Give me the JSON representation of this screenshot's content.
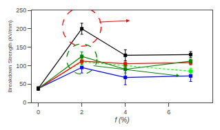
{
  "chart_data": {
    "type": "line",
    "xlabel": "f (%)",
    "ylabel": "Breakdown Strength (kV/mm)",
    "x": [
      0,
      2,
      4,
      7
    ],
    "xlim": [
      -0.3,
      8
    ],
    "xticks": [
      0,
      2,
      4,
      6
    ],
    "ylim": [
      0,
      250
    ],
    "yticks": [
      0,
      50,
      100,
      150,
      200,
      250
    ],
    "grid": false,
    "marker": "square",
    "series": [
      {
        "color": "blue",
        "line_style": "solid",
        "values": [
          38,
          95,
          68,
          72
        ],
        "errors": [
          4,
          15,
          20,
          15
        ]
      },
      {
        "color": "lime",
        "line_style": "dotted",
        "values": [
          38,
          110,
          100,
          85
        ],
        "errors": [
          4,
          10,
          8,
          8
        ]
      },
      {
        "color": "red",
        "line_style": "solid",
        "values": [
          38,
          112,
          105,
          108
        ],
        "errors": [
          4,
          8,
          8,
          6
        ]
      },
      {
        "color": "green",
        "line_style": "solid",
        "values": [
          38,
          125,
          90,
          112
        ],
        "errors": [
          4,
          12,
          10,
          6
        ]
      },
      {
        "color": "black",
        "line_style": "solid",
        "values": [
          38,
          200,
          128,
          130
        ],
        "errors": [
          5,
          15,
          15,
          8
        ]
      }
    ],
    "annotations": [
      {
        "type": "ellipse",
        "center": [
          2,
          205
        ],
        "color": "red",
        "line_style": "dashed"
      },
      {
        "type": "ellipse",
        "center": [
          2,
          118
        ],
        "color": "green",
        "line_style": "dashed"
      },
      {
        "type": "arrow",
        "from": [
          2,
          218
        ],
        "to": [
          4.2,
          222
        ],
        "color": "red"
      },
      {
        "type": "arrow",
        "from": [
          2,
          100
        ],
        "to": [
          6.5,
          72
        ],
        "color": "green"
      }
    ]
  }
}
